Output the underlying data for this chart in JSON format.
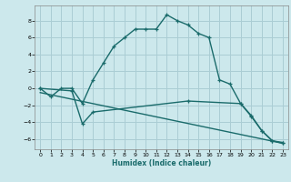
{
  "xlabel": "Humidex (Indice chaleur)",
  "background_color": "#cce8ec",
  "grid_color": "#aacdd4",
  "line_color": "#1a6b6b",
  "xlim": [
    -0.5,
    23.5
  ],
  "ylim": [
    -7.2,
    9.8
  ],
  "yticks": [
    -6,
    -4,
    -2,
    0,
    2,
    4,
    6,
    8
  ],
  "xticks": [
    0,
    1,
    2,
    3,
    4,
    5,
    6,
    7,
    8,
    9,
    10,
    11,
    12,
    13,
    14,
    15,
    16,
    17,
    18,
    19,
    20,
    21,
    22,
    23
  ],
  "series1_x": [
    0,
    1,
    2,
    3,
    4,
    5,
    6,
    7,
    8,
    9,
    10,
    11,
    12,
    13,
    14,
    15,
    16,
    17,
    18,
    19,
    20,
    21,
    22,
    23
  ],
  "series1_y": [
    0,
    -1,
    0,
    0,
    -1.8,
    1,
    3,
    5,
    6,
    7,
    7,
    7,
    8.7,
    8,
    7.5,
    6.5,
    6,
    1,
    0.5,
    -1.8,
    -3.2,
    -5,
    -6.2,
    -6.4
  ],
  "series2_x": [
    0,
    3,
    4,
    5,
    14,
    19,
    20,
    21,
    22,
    23
  ],
  "series2_y": [
    0,
    -0.3,
    -4.2,
    -2.8,
    -1.5,
    -1.8,
    -3.3,
    -5.0,
    -6.2,
    -6.5
  ],
  "series3_x": [
    0,
    23
  ],
  "series3_y": [
    -0.5,
    -6.5
  ]
}
